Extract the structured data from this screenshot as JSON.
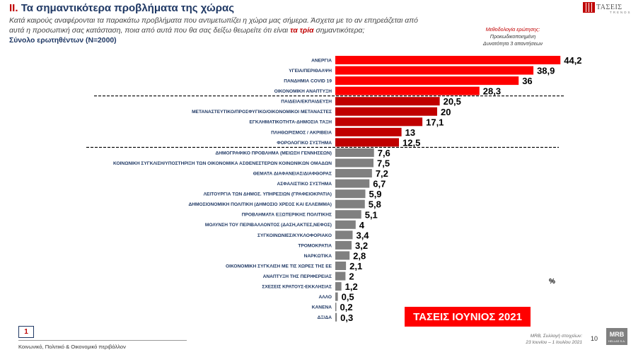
{
  "header": {
    "title_num": "II.",
    "title_text": "Τα σημαντικότερα προβλήματα της χώρας",
    "question_part1": "Κατά καιρούς αναφέρονται τα παρακάτω προβλήματα που αντιμετωπίζει η χώρα μας σήμερα. Άσχετα με το αν επηρεάζεται από αυτά η προσωπική σας κατάσταση, ποια από αυτά που θα σας δείξω θεωρείτε ότι είναι",
    "question_highlight": "τα τρία",
    "question_part2": "σημαντικότερα;",
    "sample": "Σύνολο ερωτηθέντων (Ν=2000)"
  },
  "methodology": [
    "Μεθοδολογία ερώτησης:",
    "Προκωδικοποιημένη",
    "Δυνατότητα 3 απαντήσεων"
  ],
  "brand": {
    "name": "ΤΑΣΕΙΣ",
    "sub": "TRENDS"
  },
  "period_label": "ΤΑΣΕΙΣ ΙΟΥΝΙΟΣ 2021",
  "unit": "%",
  "footer": {
    "page_box": "1",
    "text": "Κοινωνικό, Πολιτικό & Οικονομικό περιβάλλον",
    "source_line1": "MRB, Συλλογή στοιχείων:",
    "source_line2": "23 Ιουνίου – 1 Ιουλίου 2021",
    "page_number": "10",
    "company": "MRB",
    "company_sub": "HELLAS S.A."
  },
  "colors": {
    "tier1": "#ff0000",
    "tier2": "#c00000",
    "tier3": "#808080",
    "title": "#1f3864"
  },
  "chart_data": {
    "type": "bar",
    "orientation": "horizontal",
    "categories": [
      "ΑΝΕΡΓΙΑ",
      "ΥΓΕΙΑ/ΠΕΡΙΘΑΛΨΗ",
      "ΠΑΝΔΗΜΙΑ COVID 19",
      "ΟΙΚΟΝΟΜΙΚΗ ΑΝΑΠΤΥΞΗ",
      "ΠΑΙΔΕΙΑ/ΕΚΠΑΙΔΕΥΣΗ",
      "ΜΕΤΑΝΑΣΤΕΥΤΙΚΟ/ΠΡΟΣΦΥΓΙΚΟ/ΟΙΚΟΝΟΜΙΚΟΙ ΜΕΤΑΝΑΣΤΕΣ",
      "ΕΓΚΛΗΜΑΤΙΚΟΤΗΤΑ-ΔΗΜΟΣΙΑ ΤΑΞΗ",
      "ΠΛΗΘΩΡΙΣΜΟΣ / ΑΚΡΙΒΕΙΑ",
      "ΦΟΡΟΛΟΓΙΚΟ ΣΥΣΤΗΜΑ",
      "ΔΗΜΟΓΡΑΦΙΚΟ ΠΡΟΒΛΗΜΑ (ΜΕΙΩΣΗ ΓΕΝΝΗΣΕΩΝ)",
      "ΚΟΙΝΩΝΙΚΗ ΣΥΓΚΛΙΣΗ/ΥΠΟΣΤΗΡΙΞΗ ΤΩΝ ΟΙΚΟΝΟΜΙΚΑ ΑΣΘΕΝΕΣΤΕΡΩΝ ΚΟΙΝΩΝΙΚΩΝ ΟΜΑΔΩΝ",
      "ΘΕΜΑΤΑ ΔΙΑΦΑΝΕΙΑΣ/ΔΙΑΦΘΟΡΑΣ",
      "ΑΣΦΑΛΙΣΤΙΚΟ ΣΥΣΤΗΜΑ",
      "ΛΕΙΤΟΥΡΓΙΑ ΤΩΝ ΔΗΜΟΣ. ΥΠΗΡΕΣΙΩΝ (ΓΡΑΦΕΙΟΚΡΑΤΙΑ)",
      "ΔΗΜΟΣΙΟΝΟΜΙΚΗ ΠΟΛΙΤΙΚΗ (ΔΗΜΟΣΙΟ ΧΡΕΟΣ ΚΑΙ ΕΛΛΕΙΜΜΑ)",
      "ΠΡΟΒΛΗΜΑΤΑ ΕΞΩΤΕΡΙΚΗΣ ΠΟΛΙΤΙΚΗΣ",
      "ΜΟΛΥΝΣΗ ΤΟΥ ΠΕΡΙΒΑΛΛΟΝΤΟΣ (ΔΑΣΗ,ΑΚΤΕΣ,ΝΕΦΟΣ)",
      "ΣΥΓΚΟΙΝΩΝΙΕΣ/ΚΥΚΛΟΦΟΡΙΑΚΟ",
      "ΤΡΟΜΟΚΡΑΤΙΑ",
      "ΝΑΡΚΩΤΙΚΑ",
      "ΟΙΚΟΝΟΜΙΚΗ ΣΥΓΚΛΙΣΗ ΜΕ ΤΙΣ ΧΩΡΕΣ ΤΗΣ ΕΕ",
      "ΑΝΑΠΤΥΞΗ ΤΗΣ ΠΕΡΙΦΕΡΕΙΑΣ",
      "ΣΧΕΣΕΙΣ ΚΡΑΤΟΥΣ-ΕΚΚΛΗΣΙΑΣ",
      "ΑΛΛΟ",
      "ΚΑΝΕΝΑ",
      "ΔΞ/ΔΑ"
    ],
    "values": [
      44.2,
      38.9,
      36,
      28.3,
      20.5,
      20,
      17.1,
      13,
      12.5,
      7.6,
      7.5,
      7.2,
      6.7,
      5.9,
      5.8,
      5.1,
      4,
      3.4,
      3.2,
      2.8,
      2.1,
      2,
      1.2,
      0.5,
      0.2,
      0.3
    ],
    "value_labels": [
      "44,2",
      "38,9",
      "36",
      "28,3",
      "20,5",
      "20",
      "17,1",
      "13",
      "12,5",
      "7,6",
      "7,5",
      "7,2",
      "6,7",
      "5,9",
      "5,8",
      "5,1",
      "4",
      "3,4",
      "3,2",
      "2,8",
      "2,1",
      "2",
      "1,2",
      "0,5",
      "0,2",
      "0,3"
    ],
    "tiers": [
      1,
      1,
      1,
      1,
      2,
      2,
      2,
      2,
      2,
      3,
      3,
      3,
      3,
      3,
      3,
      3,
      3,
      3,
      3,
      3,
      3,
      3,
      3,
      3,
      3,
      3
    ],
    "group_separators_after_index": [
      3,
      8
    ],
    "xlim": [
      0,
      50
    ],
    "grid": false,
    "legend": "none"
  }
}
